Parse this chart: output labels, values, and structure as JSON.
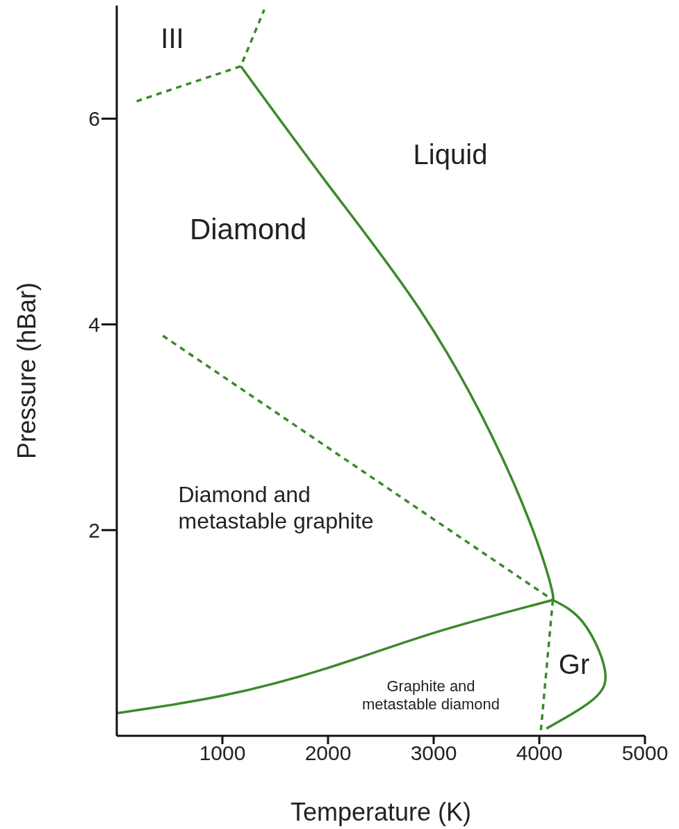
{
  "chart_data": {
    "type": "line",
    "xlabel": "Temperature (K)",
    "ylabel": "Pressure (hBar)",
    "xlim": [
      0,
      5000
    ],
    "ylim": [
      0,
      7.1
    ],
    "xticks": [
      1000,
      2000,
      3000,
      4000,
      5000
    ],
    "yticks": [
      2,
      4,
      6
    ],
    "grid": false,
    "marker": "none",
    "series": [
      {
        "color": "#3a8a2a",
        "line_style": "solid",
        "x": [
          1174,
          2000,
          2872,
          3544,
          3946,
          4114,
          4128
        ],
        "values": [
          6.51,
          5.36,
          4.14,
          2.93,
          1.98,
          1.44,
          1.32
        ]
      },
      {
        "color": "#3a8a2a",
        "line_style": "solid",
        "x": [
          4128,
          4416,
          4617,
          4517,
          4067
        ],
        "values": [
          1.32,
          1.1,
          0.66,
          0.36,
          0.07
        ]
      },
      {
        "color": "#3a8a2a",
        "line_style": "solid",
        "x": [
          0,
          1000,
          2000,
          3000,
          4128
        ],
        "values": [
          0.22,
          0.39,
          0.66,
          1.0,
          1.32
        ]
      },
      {
        "color": "#3a8a2a",
        "line_style": "dashed",
        "x": [
          436,
          4128
        ],
        "values": [
          3.89,
          1.32
        ]
      },
      {
        "color": "#3a8a2a",
        "line_style": "dashed",
        "x": [
          4128,
          4013
        ],
        "values": [
          1.32,
          0.03
        ]
      },
      {
        "color": "#3a8a2a",
        "line_style": "dashed",
        "x": [
          188,
          1174,
          1396
        ],
        "values": [
          6.17,
          6.51,
          7.06
        ]
      }
    ],
    "annotations": [
      "III",
      "Liquid",
      "Diamond",
      "Diamond and\nmetastable graphite",
      "Gr",
      "Graphite and\nmetastable diamond"
    ]
  }
}
